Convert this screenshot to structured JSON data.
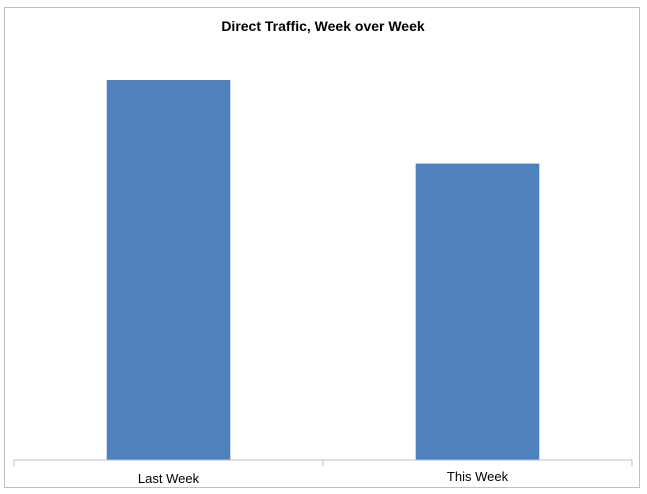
{
  "chart_data": {
    "type": "bar",
    "title": "Direct Traffic, Week over Week",
    "categories": [
      "Last Week",
      "This Week"
    ],
    "values": [
      1.0,
      0.78
    ],
    "ylim": [
      0,
      1.1
    ],
    "grid": false,
    "legend": "none",
    "bar_color": "#4f81bd",
    "axis_color": "#bfbfbf"
  }
}
